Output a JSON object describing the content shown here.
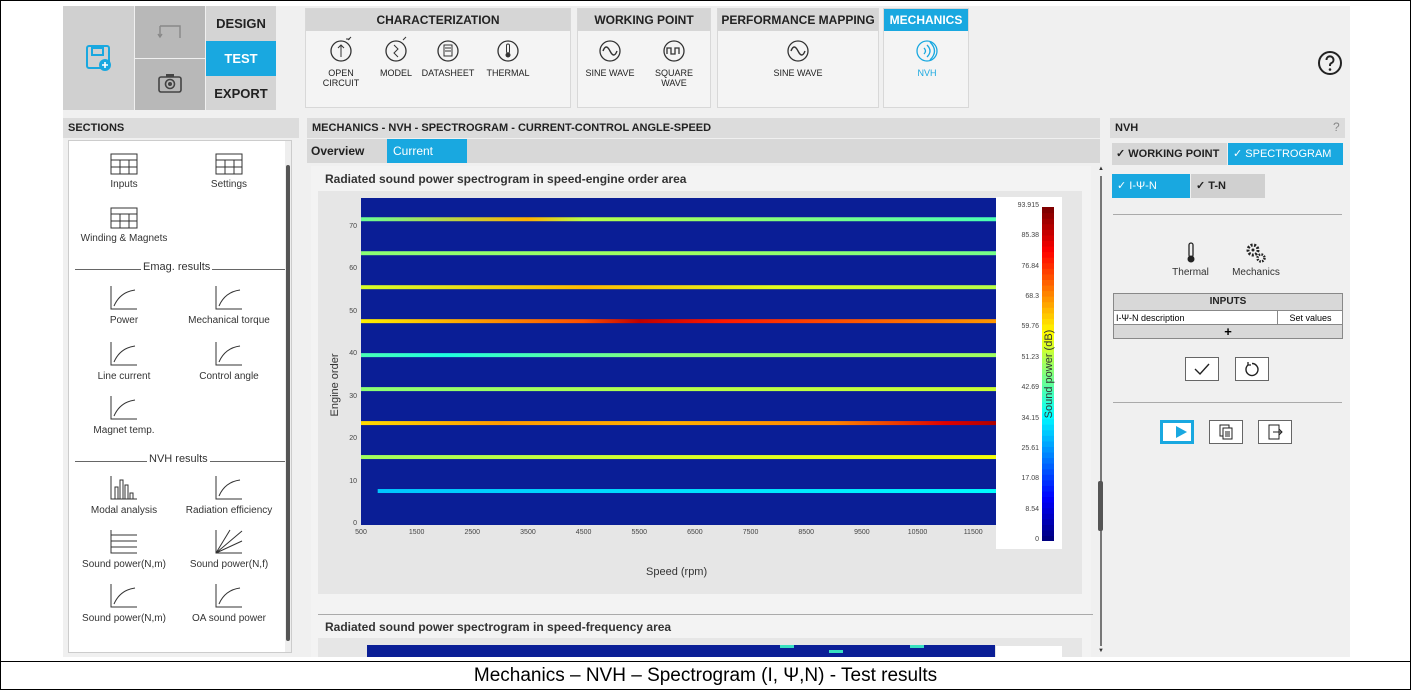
{
  "nav": {
    "design": "DESIGN",
    "test": "TEST",
    "export": "EXPORT"
  },
  "groups": {
    "characterization": {
      "title": "CHARACTERIZATION",
      "tools": [
        "OPEN CIRCUIT",
        "MODEL",
        "DATASHEET",
        "THERMAL"
      ]
    },
    "working_point": {
      "title": "WORKING POINT",
      "tools": [
        "SINE WAVE",
        "SQUARE WAVE"
      ]
    },
    "performance_mapping": {
      "title": "PERFORMANCE MAPPING",
      "tools": [
        "SINE WAVE"
      ]
    },
    "mechanics": {
      "title": "MECHANICS",
      "tools": [
        "NVH"
      ]
    }
  },
  "help_icon": "question-circle-icon",
  "sections": {
    "title": "SECTIONS",
    "items_top": [
      "Inputs",
      "Settings",
      "Winding & Magnets"
    ],
    "emag_label": "Emag. results",
    "emag_items": [
      "Power",
      "Mechanical torque",
      "Line current",
      "Control angle",
      "Magnet temp."
    ],
    "nvh_label": "NVH results",
    "nvh_items": [
      "Modal analysis",
      "Radiation efficiency",
      "Sound power(N,m)",
      "Sound power(N,f)",
      "Sound power(N,m)",
      "OA sound power"
    ]
  },
  "main": {
    "title": "MECHANICS - NVH - SPECTROGRAM - CURRENT-CONTROL ANGLE-SPEED",
    "tabs": [
      "Overview",
      "Current"
    ],
    "chart1_title": "Radiated sound power spectrogram in speed-engine order area",
    "chart2_title": "Radiated sound power spectrogram in speed-frequency area"
  },
  "chart_data": {
    "type": "heatmap",
    "title": "Radiated sound power spectrogram in speed-engine order area",
    "xlabel": "Speed (rpm)",
    "ylabel": "Engine order",
    "colorbar_label": "Sound power (dB)",
    "x_ticks": [
      "500",
      "1500",
      "2500",
      "3500",
      "4500",
      "5500",
      "6500",
      "7500",
      "8500",
      "9500",
      "10500",
      "11500"
    ],
    "y_ticks": [
      "0",
      "10",
      "20",
      "30",
      "40",
      "50",
      "60",
      "70"
    ],
    "xlim": [
      500,
      12000
    ],
    "ylim": [
      0,
      77
    ],
    "colorbar_ticks": [
      "93.915",
      "85.38",
      "76.84",
      "68.3",
      "59.76",
      "51.23",
      "42.69",
      "34.15",
      "25.61",
      "17.08",
      "8.54",
      "0"
    ],
    "colorbar_range": [
      0,
      93.915
    ],
    "colors": {
      "background": "#0a1e96",
      "low": "#1e3cc8",
      "mid": "#22d0d0",
      "high": "#e0e020",
      "max": "#e01010"
    },
    "series": [
      {
        "order": 8,
        "stops": [
          [
            800,
            30
          ],
          [
            12000,
            35
          ]
        ]
      },
      {
        "order": 16,
        "stops": [
          [
            500,
            50
          ],
          [
            6000,
            55
          ],
          [
            12000,
            58
          ]
        ]
      },
      {
        "order": 24,
        "stops": [
          [
            500,
            62
          ],
          [
            3000,
            68
          ],
          [
            6000,
            66
          ],
          [
            9000,
            70
          ],
          [
            11000,
            85
          ],
          [
            12000,
            90
          ]
        ]
      },
      {
        "order": 32,
        "stops": [
          [
            500,
            48
          ],
          [
            6000,
            52
          ],
          [
            12000,
            54
          ]
        ]
      },
      {
        "order": 40,
        "stops": [
          [
            500,
            42
          ],
          [
            2000,
            38
          ],
          [
            6000,
            48
          ],
          [
            12000,
            50
          ]
        ]
      },
      {
        "order": 48,
        "stops": [
          [
            500,
            60
          ],
          [
            4500,
            75
          ],
          [
            5500,
            88
          ],
          [
            7000,
            80
          ],
          [
            12000,
            68
          ]
        ]
      },
      {
        "order": 56,
        "stops": [
          [
            500,
            55
          ],
          [
            4500,
            65
          ],
          [
            8000,
            56
          ],
          [
            12000,
            52
          ]
        ]
      },
      {
        "order": 64,
        "stops": [
          [
            500,
            48
          ],
          [
            6000,
            50
          ],
          [
            12000,
            46
          ]
        ]
      },
      {
        "order": 72,
        "stops": [
          [
            500,
            45
          ],
          [
            3500,
            66
          ],
          [
            4500,
            52
          ],
          [
            12000,
            42
          ]
        ]
      }
    ]
  },
  "nvh_panel": {
    "title": "NVH",
    "help": "?",
    "tabs": [
      "✓ WORKING POINT",
      "✓ SPECTROGRAM"
    ],
    "subtabs": [
      "✓ I-Ψ-N",
      "✓ T-N"
    ],
    "thermal_label": "Thermal",
    "mechanics_label": "Mechanics",
    "inputs_title": "INPUTS",
    "inputs_row_label": "I-Ψ-N description",
    "inputs_row_value": "Set values",
    "add": "+"
  },
  "caption": "Mechanics – NVH – Spectrogram (I, Ψ,N) - Test results"
}
